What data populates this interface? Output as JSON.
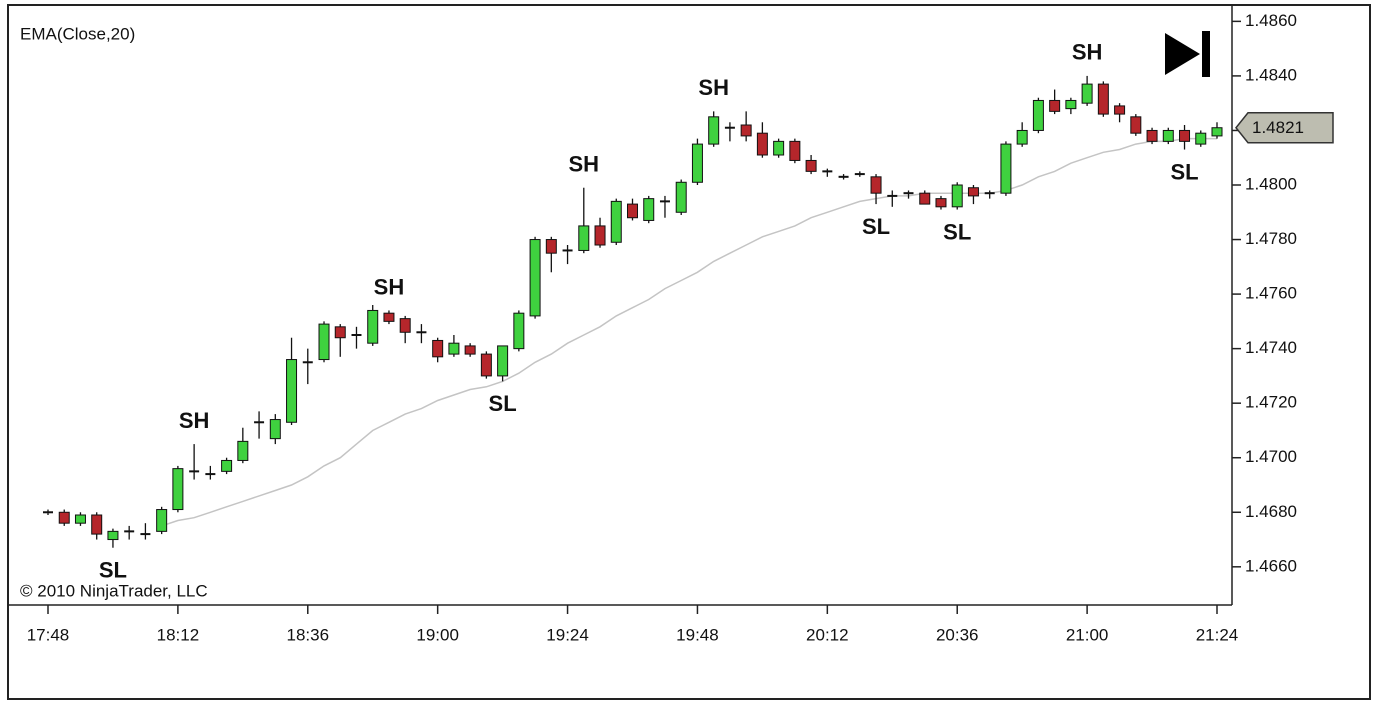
{
  "chart_data": {
    "type": "candlestick",
    "categories": [
      "17:48",
      null,
      null,
      null,
      null,
      null,
      null,
      null,
      "18:12",
      null,
      null,
      null,
      null,
      null,
      null,
      null,
      "18:36",
      null,
      null,
      null,
      null,
      null,
      null,
      null,
      "19:00",
      null,
      null,
      null,
      null,
      null,
      null,
      null,
      "19:24",
      null,
      null,
      null,
      null,
      null,
      null,
      null,
      "19:48",
      null,
      null,
      null,
      null,
      null,
      null,
      null,
      "20:12",
      null,
      null,
      null,
      null,
      null,
      null,
      null,
      "20:36",
      null,
      null,
      null,
      null,
      null,
      null,
      null,
      "21:00",
      null,
      null,
      null,
      null,
      null,
      null,
      null,
      "21:24"
    ],
    "candles": {
      "open": [
        1.468,
        1.468,
        1.4676,
        1.4679,
        1.467,
        1.4673,
        1.4672,
        1.4673,
        1.4681,
        1.4695,
        1.4694,
        1.4695,
        1.4699,
        1.4713,
        1.4707,
        1.4713,
        1.4735,
        1.4736,
        1.4748,
        1.4745,
        1.4742,
        1.4753,
        1.4751,
        1.4746,
        1.4743,
        1.4738,
        1.4741,
        1.4738,
        1.473,
        1.474,
        1.4752,
        1.478,
        1.4776,
        1.4776,
        1.4785,
        1.4779,
        1.4793,
        1.4787,
        1.4794,
        1.479,
        1.4801,
        1.4815,
        1.4821,
        1.4822,
        1.4819,
        1.4811,
        1.4816,
        1.4809,
        1.4805,
        1.4803,
        1.4804,
        1.4803,
        1.4796,
        1.4797,
        1.4797,
        1.4795,
        1.4792,
        1.4799,
        1.4797,
        1.4797,
        1.4815,
        1.482,
        1.4831,
        1.4828,
        1.483,
        1.4837,
        1.4829,
        1.4825,
        1.482,
        1.4816,
        1.482,
        1.4815,
        1.4818
      ],
      "high": [
        1.4681,
        1.4681,
        1.468,
        1.468,
        1.4674,
        1.4675,
        1.4676,
        1.4682,
        1.4697,
        1.4705,
        1.4697,
        1.47,
        1.4711,
        1.4717,
        1.4716,
        1.4744,
        1.474,
        1.475,
        1.4749,
        1.4748,
        1.4756,
        1.4754,
        1.4752,
        1.4749,
        1.4744,
        1.4745,
        1.4742,
        1.4739,
        1.4741,
        1.4754,
        1.4781,
        1.4781,
        1.4778,
        1.4799,
        1.4788,
        1.4795,
        1.4795,
        1.4796,
        1.4796,
        1.4802,
        1.4817,
        1.4827,
        1.4823,
        1.4827,
        1.4823,
        1.4817,
        1.4817,
        1.4811,
        1.4806,
        1.4804,
        1.4805,
        1.4804,
        1.4798,
        1.4798,
        1.4798,
        1.4796,
        1.4801,
        1.48,
        1.4798,
        1.4816,
        1.4823,
        1.4832,
        1.4835,
        1.4832,
        1.484,
        1.4838,
        1.483,
        1.4826,
        1.4821,
        1.4821,
        1.4822,
        1.482,
        1.4823
      ],
      "low": [
        1.4679,
        1.4675,
        1.4675,
        1.467,
        1.4667,
        1.467,
        1.467,
        1.4672,
        1.468,
        1.4692,
        1.4692,
        1.4694,
        1.4698,
        1.4707,
        1.4705,
        1.4712,
        1.4727,
        1.4735,
        1.4737,
        1.474,
        1.4741,
        1.4749,
        1.4742,
        1.4742,
        1.4735,
        1.4737,
        1.4737,
        1.4729,
        1.4728,
        1.4739,
        1.4751,
        1.4768,
        1.4771,
        1.4775,
        1.4777,
        1.4778,
        1.4787,
        1.4786,
        1.4788,
        1.4789,
        1.48,
        1.4814,
        1.4816,
        1.4816,
        1.481,
        1.481,
        1.4808,
        1.4804,
        1.4803,
        1.4802,
        1.4803,
        1.4793,
        1.4792,
        1.4795,
        1.4793,
        1.4791,
        1.4791,
        1.4793,
        1.4795,
        1.4796,
        1.4814,
        1.4819,
        1.4826,
        1.4826,
        1.4829,
        1.4825,
        1.4823,
        1.4818,
        1.4815,
        1.4815,
        1.4813,
        1.4814,
        1.4817
      ],
      "close": [
        1.468,
        1.4676,
        1.4679,
        1.4672,
        1.4673,
        1.4673,
        1.4672,
        1.4681,
        1.4696,
        1.4695,
        1.4694,
        1.4699,
        1.4706,
        1.4713,
        1.4714,
        1.4736,
        1.4735,
        1.4749,
        1.4744,
        1.4745,
        1.4754,
        1.475,
        1.4746,
        1.4746,
        1.4737,
        1.4742,
        1.4738,
        1.473,
        1.4741,
        1.4753,
        1.478,
        1.4775,
        1.4776,
        1.4785,
        1.4778,
        1.4794,
        1.4788,
        1.4795,
        1.4794,
        1.4801,
        1.4815,
        1.4825,
        1.4821,
        1.4818,
        1.4811,
        1.4816,
        1.4809,
        1.4805,
        1.4805,
        1.4803,
        1.4804,
        1.4797,
        1.4796,
        1.4797,
        1.4793,
        1.4792,
        1.48,
        1.4796,
        1.4797,
        1.4815,
        1.482,
        1.4831,
        1.4827,
        1.4831,
        1.4837,
        1.4826,
        1.4826,
        1.4819,
        1.4816,
        1.482,
        1.4816,
        1.4819,
        1.4821
      ],
      "up_color": "#3fd13f",
      "down_color": "#b5262b"
    },
    "ema": {
      "name": "EMA(Close,20)",
      "color": "#c4c4c4",
      "values": [
        null,
        null,
        null,
        null,
        null,
        null,
        null,
        1.4675,
        1.4677,
        1.4678,
        1.468,
        1.4682,
        1.4684,
        1.4686,
        1.4688,
        1.469,
        1.4693,
        1.4697,
        1.47,
        1.4705,
        1.471,
        1.4713,
        1.4716,
        1.4718,
        1.4721,
        1.4723,
        1.4725,
        1.4726,
        1.4728,
        1.4731,
        1.4735,
        1.4738,
        1.4742,
        1.4745,
        1.4748,
        1.4752,
        1.4755,
        1.4758,
        1.4762,
        1.4765,
        1.4768,
        1.4772,
        1.4775,
        1.4778,
        1.4781,
        1.4783,
        1.4785,
        1.4788,
        1.479,
        1.4792,
        1.4794,
        1.4795,
        1.4796,
        1.4796,
        1.4797,
        1.4797,
        1.4797,
        1.4797,
        1.4797,
        1.4798,
        1.48,
        1.4803,
        1.4805,
        1.4808,
        1.481,
        1.4812,
        1.4813,
        1.4815,
        1.4816,
        1.4816,
        1.4817,
        1.4817,
        1.4817
      ]
    },
    "annotations": [
      {
        "text": "SH",
        "bar": 9
      },
      {
        "text": "SH",
        "bar": 21
      },
      {
        "text": "SH",
        "bar": 33
      },
      {
        "text": "SH",
        "bar": 41
      },
      {
        "text": "SH",
        "bar": 64
      },
      {
        "text": "SL",
        "bar": 4
      },
      {
        "text": "SL",
        "bar": 28
      },
      {
        "text": "SL",
        "bar": 51
      },
      {
        "text": "SL",
        "bar": 56
      },
      {
        "text": "SL",
        "bar": 70
      }
    ],
    "annotation_colors": {
      "SH": "#cc3b3b",
      "SL": "#3a8f47"
    },
    "price_marker": {
      "value": 1.4821,
      "label": "1.4821"
    },
    "ylim": [
      1.4646,
      1.4866
    ],
    "yticks": [
      {
        "value": 1.466,
        "label": "1.4660"
      },
      {
        "value": 1.468,
        "label": "1.4680"
      },
      {
        "value": 1.47,
        "label": "1.4700"
      },
      {
        "value": 1.472,
        "label": "1.4720"
      },
      {
        "value": 1.474,
        "label": "1.4740"
      },
      {
        "value": 1.476,
        "label": "1.4760"
      },
      {
        "value": 1.478,
        "label": "1.4780"
      },
      {
        "value": 1.48,
        "label": "1.4800"
      },
      {
        "value": 1.482,
        "label": "1.4820"
      },
      {
        "value": 1.484,
        "label": "1.4840"
      },
      {
        "value": 1.486,
        "label": "1.4860"
      }
    ],
    "copyright": "© 2010 NinjaTrader, LLC"
  }
}
